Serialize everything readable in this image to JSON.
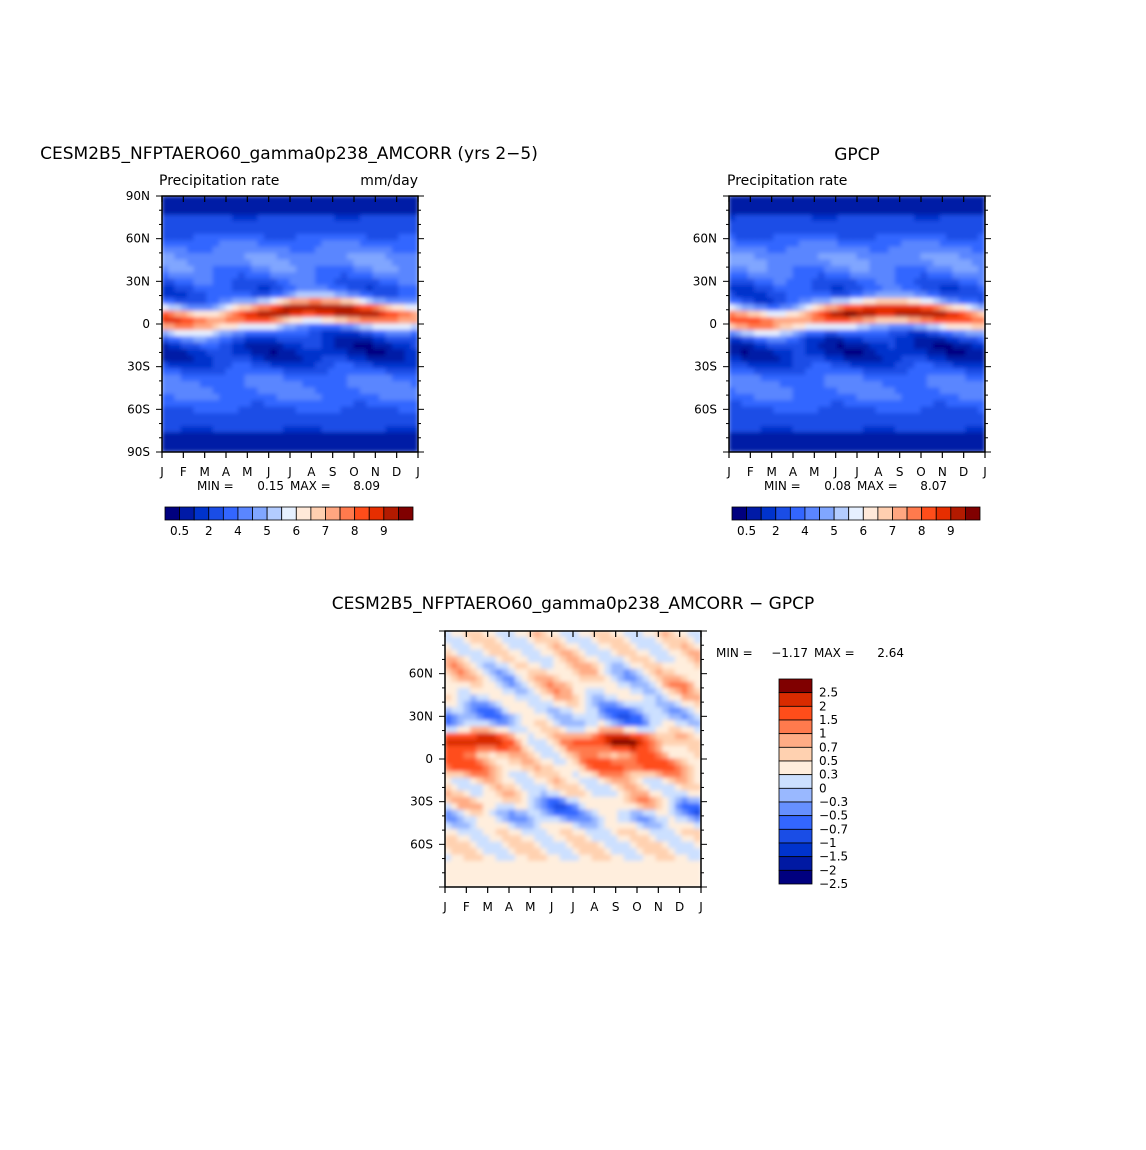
{
  "palettes": {
    "precip": [
      "#00007f",
      "#001aa6",
      "#0033cc",
      "#1a4de6",
      "#3366ff",
      "#5a86ff",
      "#80a6ff",
      "#b3ccff",
      "#e6f0ff",
      "#ffe9d9",
      "#ffcfb0",
      "#ffa680",
      "#ff7a4d",
      "#ff4d1a",
      "#e62e00",
      "#b31a00",
      "#800000"
    ],
    "diff": [
      "#00007f",
      "#0019a3",
      "#0033cc",
      "#1a4de6",
      "#3366ff",
      "#6690ff",
      "#99b8ff",
      "#cce0ff",
      "#ffeedd",
      "#ffd1b0",
      "#ffac85",
      "#ff7a4d",
      "#ff4d1a",
      "#d92b00",
      "#800000"
    ]
  },
  "chart_data": [
    {
      "type": "heatmap",
      "title": "CESM2B5_NFPTAERO60_gamma0p238_AMCORR (yrs 2−5)",
      "subtitle_left": "Precipitation rate",
      "subtitle_right": "mm/day",
      "x_ticks": [
        "J",
        "F",
        "M",
        "A",
        "M",
        "J",
        "J",
        "A",
        "S",
        "O",
        "N",
        "D",
        "J"
      ],
      "y_ticks": [
        "90N",
        "60N",
        "30N",
        "0",
        "30S",
        "60S",
        "90S"
      ],
      "y_tick_values": [
        90,
        60,
        30,
        0,
        -30,
        -60,
        -90
      ],
      "ylim": [
        -90,
        90
      ],
      "min_label": "MIN =",
      "min_value": "0.15",
      "max_label": "MAX =",
      "max_value": "8.09",
      "colorbar_labels": [
        "0.5",
        "2",
        "4",
        "5",
        "6",
        "7",
        "8",
        "9"
      ],
      "colorbar_label_slots": [
        1,
        3,
        5,
        7,
        9,
        11,
        13,
        15
      ],
      "colorbar_bins": 17,
      "itcz_peak_lat": [
        4,
        3,
        2,
        3,
        5,
        7,
        10,
        10,
        9,
        8,
        7,
        6,
        5
      ],
      "itcz_peak_value": [
        6.2,
        6.0,
        5.8,
        5.9,
        6.3,
        7.0,
        8.09,
        8.0,
        7.6,
        7.2,
        6.9,
        6.6,
        6.2
      ],
      "field_min": 0.15,
      "field_max": 8.09
    },
    {
      "type": "heatmap",
      "title": "GPCP",
      "subtitle_left": "Precipitation rate",
      "x_ticks": [
        "J",
        "F",
        "M",
        "A",
        "M",
        "J",
        "J",
        "A",
        "S",
        "O",
        "N",
        "D",
        "J"
      ],
      "y_ticks": [
        "60N",
        "30N",
        "0",
        "30S",
        "60S"
      ],
      "y_tick_values": [
        60,
        30,
        0,
        -30,
        -60
      ],
      "ylim": [
        -90,
        90
      ],
      "min_label": "MIN =",
      "min_value": "0.08",
      "max_label": "MAX =",
      "max_value": "8.07",
      "colorbar_labels": [
        "0.5",
        "2",
        "4",
        "5",
        "6",
        "7",
        "8",
        "9"
      ],
      "colorbar_label_slots": [
        1,
        3,
        5,
        7,
        9,
        11,
        13,
        15
      ],
      "colorbar_bins": 17,
      "itcz_peak_lat": [
        3,
        2,
        1,
        2,
        4,
        6,
        8,
        9,
        8,
        7,
        6,
        5,
        3
      ],
      "itcz_peak_value": [
        6.0,
        5.9,
        5.8,
        5.9,
        6.2,
        6.8,
        7.6,
        8.07,
        7.8,
        7.3,
        6.8,
        6.4,
        6.0
      ],
      "field_min": 0.08,
      "field_max": 8.07
    },
    {
      "type": "heatmap",
      "title": "CESM2B5_NFPTAERO60_gamma0p238_AMCORR − GPCP",
      "x_ticks": [
        "J",
        "F",
        "M",
        "A",
        "M",
        "J",
        "J",
        "A",
        "S",
        "O",
        "N",
        "D",
        "J"
      ],
      "y_ticks": [
        "60N",
        "30N",
        "0",
        "30S",
        "60S"
      ],
      "y_tick_values": [
        60,
        30,
        0,
        -30,
        -60
      ],
      "ylim": [
        -90,
        90
      ],
      "min_label": "MIN =",
      "min_value": "−1.17",
      "max_label": "MAX =",
      "max_value": "2.64",
      "colorbar_labels": [
        "2.5",
        "2",
        "1.5",
        "1",
        "0.7",
        "0.5",
        "0.3",
        "0",
        "−0.3",
        "−0.5",
        "−0.7",
        "−1",
        "−1.5",
        "−2",
        "−2.5"
      ],
      "colorbar_bins": 15,
      "field_min": -1.17,
      "field_max": 2.64
    }
  ]
}
